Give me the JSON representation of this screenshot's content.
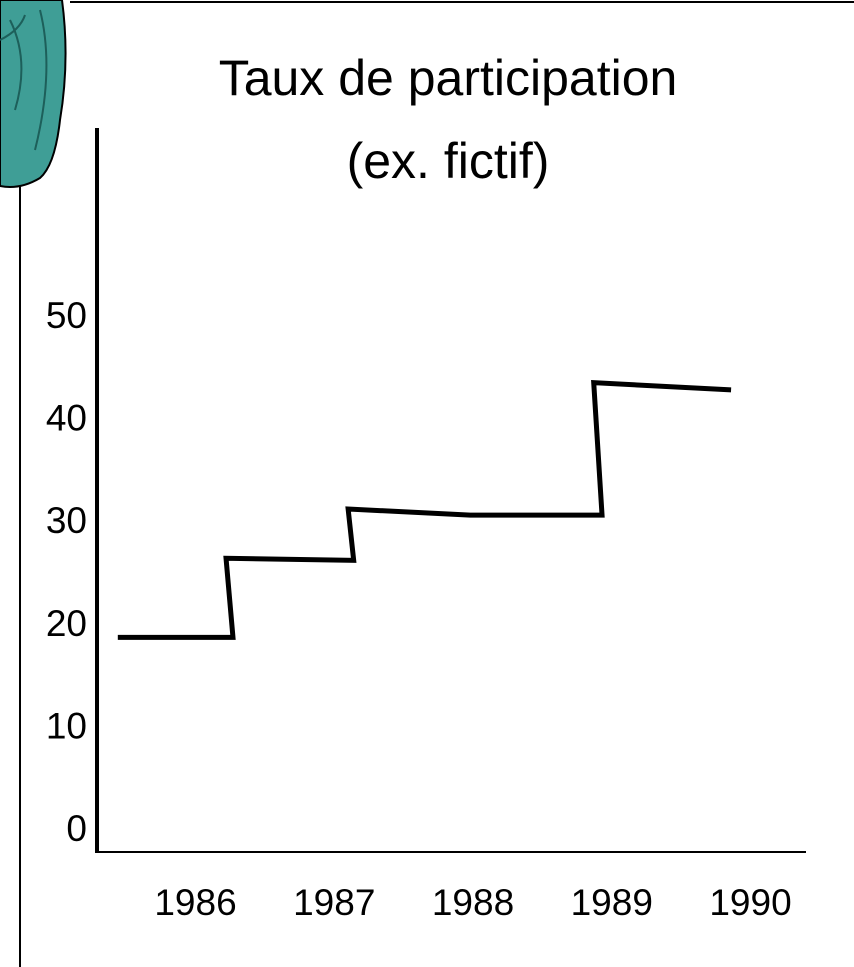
{
  "chart_data": {
    "type": "line",
    "title": [
      "Taux de participation",
      "(ex. fictif)"
    ],
    "series": [
      {
        "color": "#000000",
        "x": [
          1985.44,
          1986.27,
          1986.22,
          1987.14,
          1987.1,
          1987.98,
          1988.93,
          1988.87,
          1989.86
        ],
        "values": [
          18.9,
          18.9,
          26.6,
          26.4,
          31.4,
          30.8,
          30.8,
          43.7,
          43.0
        ]
      }
    ],
    "xlim": [
      1985.29,
      1990.4
    ],
    "xticks": [
      1986,
      1987,
      1988,
      1989,
      1990
    ],
    "ylim": [
      -2,
      68.5
    ],
    "yticks": [
      0,
      10,
      20,
      30,
      40,
      50
    ]
  }
}
